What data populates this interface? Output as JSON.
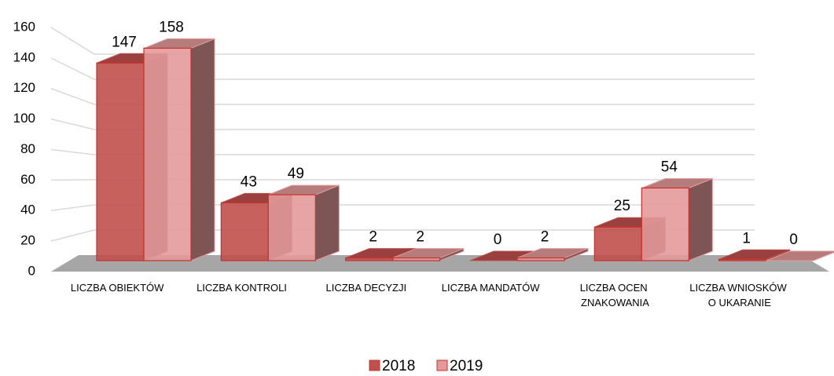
{
  "chart_data": {
    "type": "bar3d",
    "categories": [
      "LICZBA OBIEKTÓW",
      "LICZBA KONTROLI",
      "LICZBA DECYZJI",
      "LICZBA MANDATÓW",
      "LICZBA OCEN ZNAKOWANIA",
      "LICZBA WNIOSKÓW O UKARANIE"
    ],
    "series": [
      {
        "name": "2018",
        "color": "#c0504d",
        "values": [
          147,
          43,
          2,
          0,
          25,
          1
        ]
      },
      {
        "name": "2019",
        "color": "#e39a9a",
        "values": [
          158,
          49,
          2,
          2,
          54,
          0
        ]
      }
    ],
    "ylim": [
      0,
      160
    ],
    "yticks": [
      0,
      20,
      40,
      60,
      80,
      100,
      120,
      140,
      160
    ],
    "grid": true,
    "legend": "bottom"
  }
}
